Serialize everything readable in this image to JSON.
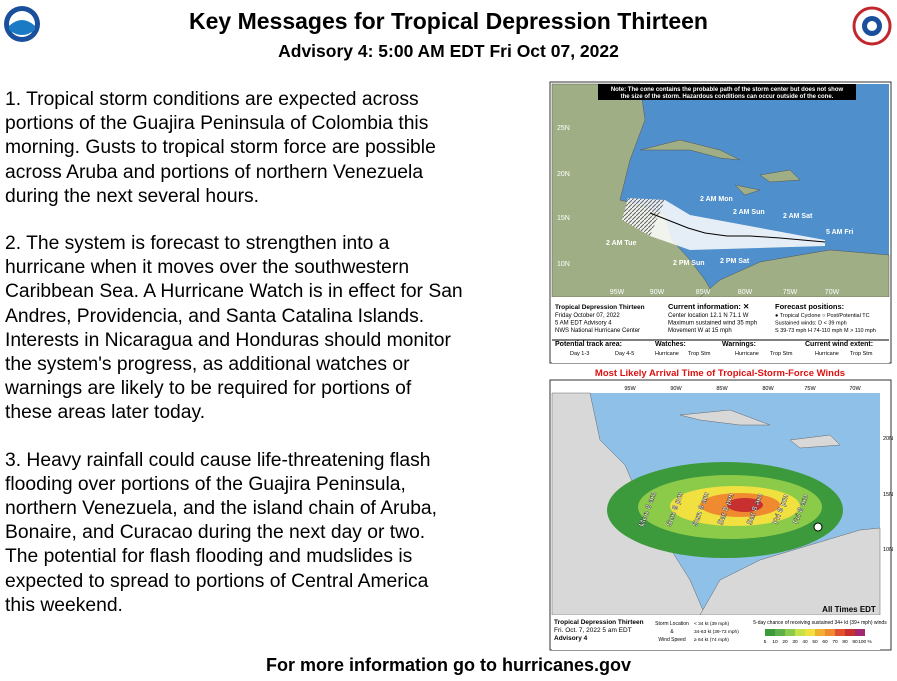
{
  "header": {
    "title": "Key Messages for Tropical Depression Thirteen",
    "subtitle": "Advisory 4:  5:00 AM EDT Fri Oct 07, 2022"
  },
  "messages": [
    "1. Tropical storm conditions are expected across portions of the Guajira Peninsula of Colombia this morning. Gusts to tropical storm force are possible across Aruba and portions of northern Venezuela during the next several hours.",
    "2. The system is forecast to strengthen into a hurricane when it moves over the southwestern Caribbean Sea. A Hurricane Watch is in effect for San Andres, Providencia, and Santa Catalina Islands. Interests in Nicaragua and Honduras should monitor the system's progress, as additional watches or warnings are likely to be required for portions of these areas later today.",
    "3. Heavy rainfall could cause life-threatening flash flooding over portions of the Guajira Peninsula, northern Venezuela, and the island chain of Aruba, Bonaire, and Curacao during the next day or two. The potential for flash flooding and mudslides is expected to spread to portions of Central America this weekend."
  ],
  "footer": "For more information go to hurricanes.gov",
  "logos": {
    "noaa": "NOAA",
    "nws": "NATIONAL WEATHER SERVICE"
  },
  "cone_map": {
    "note": [
      "Note: The cone contains the probable path of the storm center but does not show",
      "the size of the storm. Hazardous conditions can occur outside of the cone."
    ],
    "lat_labels": [
      "25N",
      "20N",
      "15N",
      "10N"
    ],
    "lon_labels": [
      "95W",
      "90W",
      "85W",
      "80W",
      "75W",
      "70W"
    ],
    "time_labels": [
      "5 AM Fri",
      "2 AM Sat",
      "2 AM Sun",
      "2 AM Mon",
      "2 AM Tue",
      "2 PM Sat",
      "2 PM Sun"
    ],
    "info": {
      "storm": "Tropical Depression Thirteen",
      "lines": [
        "Friday October 07, 2022",
        "5 AM EDT Advisory 4",
        "NWS National Hurricane Center"
      ],
      "current_title": "Current information: ✕",
      "current_lines": [
        "Center location 12.1 N 71.1 W",
        "Maximum sustained wind 35 mph",
        "Movement W at 15 mph"
      ],
      "forecast_title": "Forecast positions:",
      "forecast_lines": [
        "● Tropical Cyclone   ○ Post/Potential TC",
        "Sustained winds:       D < 39 mph",
        "S 39-73 mph   H 74-110 mph   M > 110 mph"
      ]
    },
    "legend": [
      "Potential track area:",
      "Day 1-3",
      "Day 4-5",
      "Watches:",
      "Hurricane",
      "Trop Stm",
      "Warnings:",
      "Hurricane",
      "Trop Stm",
      "Current wind extent:",
      "Hurricane",
      "Trop Stm"
    ]
  },
  "arrival_map": {
    "title": "Most Likely Arrival Time of Tropical-Storm-Force Winds",
    "lon_labels": [
      "95W",
      "90W",
      "85W",
      "80W",
      "75W",
      "70W"
    ],
    "lat_labels": [
      "20N",
      "15N",
      "10N"
    ],
    "time_labels": [
      "Mon 8 am",
      "Sun 8 pm",
      "Sun 8 am",
      "Sat 8 pm",
      "Sat 8 am",
      "Fri 8 pm",
      "Fri 8 am"
    ],
    "times_note": "All Times EDT",
    "info": [
      "Tropical Depression Thirteen",
      "Fri. Oct. 7, 2022  5 am EDT",
      "Advisory 4"
    ],
    "key": [
      "Storm Location",
      "&",
      "Wind Speed"
    ],
    "speeds": [
      "< 34 kt (39 mph)",
      "34-63 kt (39-73 mph)",
      "≥ 64 kt (74 mph)"
    ],
    "scale_title": "5-day chance of receiving sustained 34+ kt (39+ mph) winds",
    "scale": [
      "5",
      "10",
      "20",
      "30",
      "40",
      "50",
      "60",
      "70",
      "80",
      "90",
      "100 %"
    ]
  }
}
